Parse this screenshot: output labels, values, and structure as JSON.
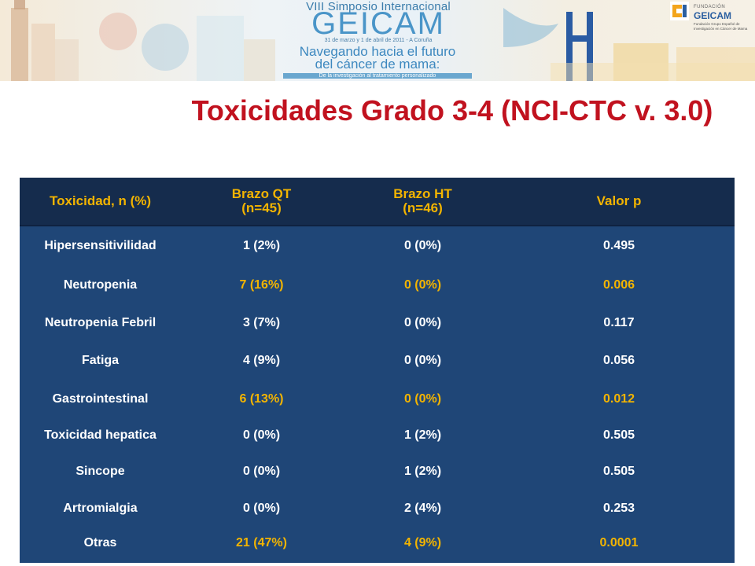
{
  "banner": {
    "event_line1": "VIII Simposio Internacional",
    "event_name": "GEICAM",
    "event_dates": "31 de marzo y 1 de abril de 2011 - A Coruña",
    "slogan_line1": "Navegando hacia el futuro",
    "slogan_line2": "del cáncer de mama:",
    "subtitle": "De la investigación al tratamiento personalizado",
    "logo": {
      "foundation": "FUNDACIÓN",
      "name": "GEICAM",
      "description": "Fundación Grupo Español de Investigación en Cáncer de Mama"
    }
  },
  "slide": {
    "title": "Toxicidades Grado 3-4 (NCI-CTC v. 3.0)"
  },
  "table": {
    "headers": [
      {
        "line1": "Toxicidad, n (%)",
        "line2": ""
      },
      {
        "line1": "Brazo QT",
        "line2": "(n=45)"
      },
      {
        "line1": "Brazo HT",
        "line2": "(n=46)"
      },
      {
        "line1": "Valor p",
        "line2": ""
      }
    ],
    "rows": [
      {
        "name": "Hipersensitivilidad",
        "qt": "1 (2%)",
        "ht": "0 (0%)",
        "p": "0.495",
        "highlight": false
      },
      {
        "name": "Neutropenia",
        "qt": "7 (16%)",
        "ht": "0 (0%)",
        "p": "0.006",
        "highlight": true
      },
      {
        "name": "Neutropenia Febril",
        "qt": "3 (7%)",
        "ht": "0 (0%)",
        "p": "0.117",
        "highlight": false
      },
      {
        "name": "Fatiga",
        "qt": "4 (9%)",
        "ht": "0 (0%)",
        "p": "0.056",
        "highlight": false
      },
      {
        "name": "Gastrointestinal",
        "qt": "6 (13%)",
        "ht": "0 (0%)",
        "p": "0.012",
        "highlight": true
      },
      {
        "name": "Toxicidad hepatica",
        "qt": "0 (0%)",
        "ht": "1 (2%)",
        "p": "0.505",
        "highlight": false
      },
      {
        "name": "Sincope",
        "qt": "0 (0%)",
        "ht": "1 (2%)",
        "p": "0.505",
        "highlight": false
      },
      {
        "name": "Artromialgia",
        "qt": "0 (0%)",
        "ht": "2 (4%)",
        "p": "0.253",
        "highlight": false
      },
      {
        "name": "Otras",
        "qt": "21 (47%)",
        "ht": "4 (9%)",
        "p": "0.0001",
        "highlight": true
      }
    ]
  },
  "colors": {
    "title": "#c1121f",
    "header_bg": "#152c4d",
    "table_bg": "#1f4677",
    "highlight_text": "#f3b400",
    "cell_text": "#ffffff"
  }
}
